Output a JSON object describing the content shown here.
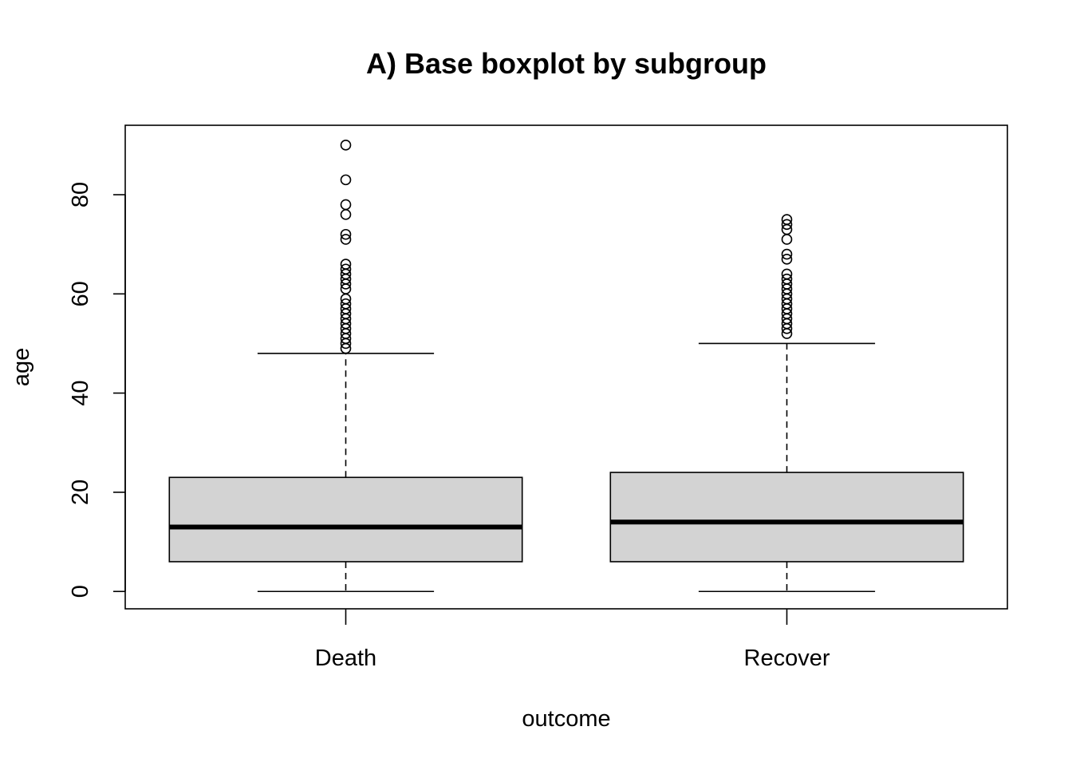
{
  "chart_data": {
    "type": "boxplot",
    "title": "A) Base boxplot by subgroup",
    "xlabel": "outcome",
    "ylabel": "age",
    "categories": [
      "Death",
      "Recover"
    ],
    "ylim": [
      -3.5,
      94
    ],
    "yticks": [
      0,
      20,
      40,
      60,
      80
    ],
    "ytick_labels": [
      "0",
      "20",
      "40",
      "60",
      "80"
    ],
    "grid": false,
    "box_fill": "#d3d3d3",
    "groups": [
      {
        "name": "Death",
        "whisker_low": 0,
        "q1": 6,
        "median": 13,
        "q3": 23,
        "whisker_high": 48,
        "outliers": [
          49,
          50,
          51,
          52,
          53,
          54,
          55,
          56,
          57,
          58,
          59,
          61,
          62,
          63,
          64,
          65,
          66,
          71,
          72,
          76,
          78,
          83,
          90
        ]
      },
      {
        "name": "Recover",
        "whisker_low": 0,
        "q1": 6,
        "median": 14,
        "q3": 24,
        "whisker_high": 50,
        "outliers": [
          52,
          53,
          54,
          55,
          56,
          57,
          58,
          59,
          60,
          61,
          62,
          63,
          64,
          67,
          68,
          71,
          73,
          74,
          75
        ]
      }
    ]
  }
}
